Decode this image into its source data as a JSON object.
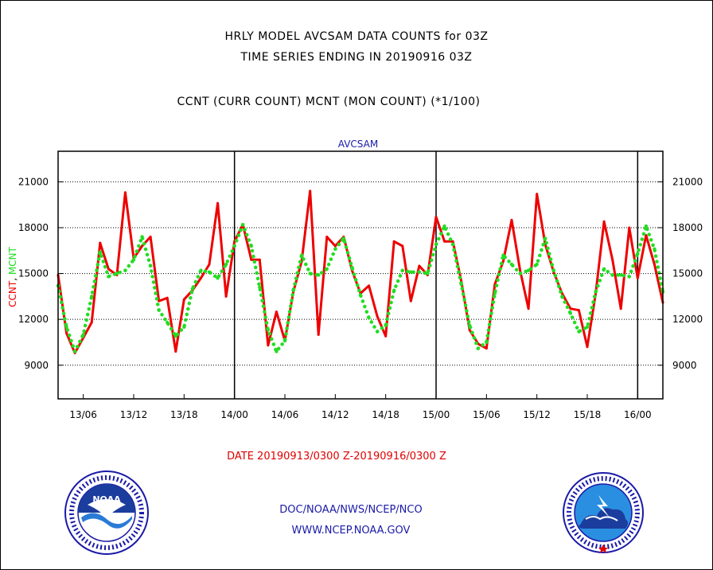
{
  "header": {
    "title_line1": "HRLY MODEL AVCSAM DATA COUNTS for 03Z",
    "title_line2": "TIME SERIES ENDING IN 20190916 03Z",
    "subtitle": "CCNT (CURR COUNT) MCNT (MON COUNT) (*1/100)"
  },
  "footer": {
    "date_range": "DATE 20190913/0300 Z-20190916/0300 Z",
    "org_line": "DOC/NOAA/NWS/NCEP/NCO",
    "url_line": "WWW.NCEP.NOAA.GOV"
  },
  "logos": {
    "left": "noaa-logo",
    "left_text": "NOAA",
    "right": "national-weather-service-logo",
    "right_text": "NATIONAL WEATHER SERVICE"
  },
  "colors": {
    "ccnt": "#ee0000",
    "mcnt": "#22dd22",
    "chart_title": "#1a1aa8",
    "grid": "#000000"
  },
  "chart_data": {
    "type": "line",
    "title": "AVCSAM",
    "ylabel_parts": [
      {
        "text": "CCNT",
        "color": "#ee0000"
      },
      {
        "text": ", ",
        "color": "#000000"
      },
      {
        "text": "MCNT",
        "color": "#22dd22"
      }
    ],
    "ylim": [
      6800,
      23000
    ],
    "yticks": [
      9000,
      12000,
      15000,
      18000,
      21000
    ],
    "xlim": [
      3,
      75
    ],
    "xticks": [
      {
        "x": 6,
        "label": "13/06"
      },
      {
        "x": 12,
        "label": "13/12"
      },
      {
        "x": 18,
        "label": "13/18"
      },
      {
        "x": 24,
        "label": "14/00"
      },
      {
        "x": 30,
        "label": "14/06"
      },
      {
        "x": 36,
        "label": "14/12"
      },
      {
        "x": 42,
        "label": "14/18"
      },
      {
        "x": 48,
        "label": "15/00"
      },
      {
        "x": 54,
        "label": "15/06"
      },
      {
        "x": 60,
        "label": "15/12"
      },
      {
        "x": 66,
        "label": "15/18"
      },
      {
        "x": 72,
        "label": "16/00"
      }
    ],
    "day_lines": [
      24,
      48,
      72
    ],
    "grid": true,
    "series": [
      {
        "name": "CCNT",
        "style": "solid",
        "x": [
          3,
          4,
          5,
          6,
          7,
          8,
          9,
          10,
          11,
          12,
          13,
          14,
          15,
          16,
          17,
          18,
          19,
          20,
          21,
          22,
          23,
          24,
          25,
          26,
          27,
          28,
          29,
          30,
          31,
          32,
          33,
          34,
          35,
          36,
          37,
          38,
          39,
          40,
          41,
          42,
          43,
          44,
          45,
          46,
          47,
          48,
          49,
          50,
          51,
          52,
          53,
          54,
          55,
          56,
          57,
          58,
          59,
          60,
          61,
          62,
          63,
          64,
          65,
          66,
          67,
          68,
          69,
          70,
          71,
          72,
          73,
          74,
          75
        ],
        "values": [
          14900,
          11100,
          9800,
          10800,
          11800,
          17000,
          15300,
          14900,
          20300,
          16000,
          16800,
          17400,
          13200,
          13400,
          9900,
          13300,
          13900,
          14700,
          15600,
          19600,
          13500,
          17100,
          18200,
          15900,
          15900,
          10300,
          12500,
          10600,
          13800,
          15800,
          20400,
          11000,
          17400,
          16800,
          17400,
          15200,
          13700,
          14200,
          12200,
          10900,
          17100,
          16800,
          13200,
          15500,
          14900,
          18700,
          17100,
          17100,
          14500,
          11300,
          10400,
          10100,
          14300,
          15800,
          18500,
          15200,
          12700,
          20200,
          16900,
          15100,
          13700,
          12700,
          12600,
          10200,
          13700,
          18400,
          15900,
          12700,
          18000,
          14700,
          17500,
          15600,
          13100
        ]
      },
      {
        "name": "MCNT",
        "style": "dotted",
        "x": [
          3,
          4,
          5,
          6,
          7,
          8,
          9,
          10,
          11,
          12,
          13,
          14,
          15,
          16,
          17,
          18,
          19,
          20,
          21,
          22,
          23,
          24,
          25,
          26,
          27,
          28,
          29,
          30,
          31,
          32,
          33,
          34,
          35,
          36,
          37,
          38,
          39,
          40,
          41,
          42,
          43,
          44,
          45,
          46,
          47,
          48,
          49,
          50,
          51,
          52,
          53,
          54,
          55,
          56,
          57,
          58,
          59,
          60,
          61,
          62,
          63,
          64,
          65,
          66,
          67,
          68,
          69,
          70,
          71,
          72,
          73,
          74,
          75
        ],
        "values": [
          14200,
          11500,
          9900,
          11000,
          13500,
          16400,
          14800,
          15000,
          15200,
          15900,
          17400,
          15500,
          12600,
          11800,
          10900,
          11500,
          14000,
          15200,
          15100,
          14700,
          15600,
          16800,
          18200,
          16800,
          14100,
          11300,
          9900,
          10600,
          13900,
          16200,
          15000,
          14900,
          15300,
          16600,
          17300,
          15400,
          13600,
          12100,
          11200,
          11600,
          13900,
          15200,
          15100,
          15100,
          15000,
          16900,
          18100,
          16900,
          14300,
          11600,
          10100,
          10500,
          13700,
          16200,
          15600,
          15000,
          15200,
          15600,
          17300,
          15200,
          13500,
          12400,
          11200,
          11500,
          13800,
          15300,
          14900,
          14900,
          14800,
          16300,
          18100,
          16600,
          13800
        ]
      }
    ]
  }
}
